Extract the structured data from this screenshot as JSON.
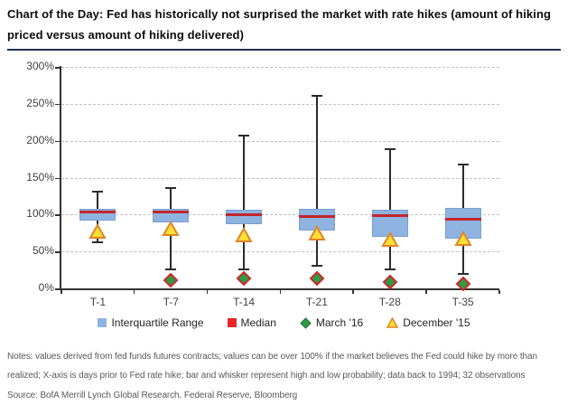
{
  "header": {
    "title_lines": [
      "Chart of the Day: Fed has historically not surprised the market with rate hikes (amount of hiking",
      "priced versus amount of hiking delivered)"
    ]
  },
  "chart_data": {
    "type": "boxplot",
    "title": "Chart of the Day: Fed has historically not surprised the market with rate hikes (amount of hiking priced versus amount of hiking delivered)",
    "categories": [
      "T-1",
      "T-7",
      "T-14",
      "T-21",
      "T-28",
      "T-35"
    ],
    "unit": "%",
    "ylim": [
      0,
      300
    ],
    "ytick_step": 50,
    "ytick_labels": [
      "300%",
      "250%",
      "200%",
      "150%",
      "100%",
      "50%",
      "0%"
    ],
    "grid": "dashed-horizontal-gridlines",
    "legend_position": "bottom-center",
    "boxes": [
      {
        "category": "T-1",
        "whisker_high": 131,
        "q3": 108,
        "median": 104,
        "q1": 92,
        "whisker_low": 62
      },
      {
        "category": "T-7",
        "whisker_high": 136,
        "q3": 108,
        "median": 103,
        "q1": 89,
        "whisker_low": 26
      },
      {
        "category": "T-14",
        "whisker_high": 207,
        "q3": 106,
        "median": 100,
        "q1": 87,
        "whisker_low": 26
      },
      {
        "category": "T-21",
        "whisker_high": 261,
        "q3": 108,
        "median": 97,
        "q1": 78,
        "whisker_low": 31
      },
      {
        "category": "T-28",
        "whisker_high": 189,
        "q3": 107,
        "median": 99,
        "q1": 70,
        "whisker_low": 26
      },
      {
        "category": "T-35",
        "whisker_high": 168,
        "q3": 109,
        "median": 94,
        "q1": 67,
        "whisker_low": 19
      }
    ],
    "markers": {
      "march16": {
        "name": "March '16",
        "shape": "diamond",
        "values": [
          null,
          11,
          13,
          13,
          9,
          6
        ]
      },
      "december15": {
        "name": "December '15",
        "shape": "triangle",
        "values": [
          77,
          81,
          72,
          75,
          66,
          67
        ]
      }
    },
    "legend": [
      {
        "label": "Interquartile Range",
        "swatch": "blue-square"
      },
      {
        "label": "Median",
        "swatch": "red-square"
      },
      {
        "label": "March '16",
        "swatch": "green-diamond"
      },
      {
        "label": "December '15",
        "swatch": "yellow-triangle"
      }
    ],
    "colors": {
      "box_fill": "#8FB3E1",
      "box_border": "#7AA0CF",
      "median": "#C2262C",
      "legend_red": "#E8232A",
      "march16_fill": "#2E9B45",
      "march16_border": "#D02627",
      "december15_fill": "#FFE033",
      "december15_border": "#E0832B",
      "whisker": "#2b2b2b",
      "gridline": "#BFBFBF",
      "axis": "#333333",
      "axis_text": "#404040"
    }
  },
  "footer": {
    "notes_lines": [
      "Notes: values derived from fed funds futures contracts; values can be over 100% if the market believes the Fed could hike by more than",
      "realized; X-axis is days prior to Fed rate hike; bar and whisker represent high and low probability; data back to 1994; 32 observations"
    ],
    "source": "Source: BofA Merrill Lynch Global Research, Federal Reserve, Bloomberg"
  }
}
